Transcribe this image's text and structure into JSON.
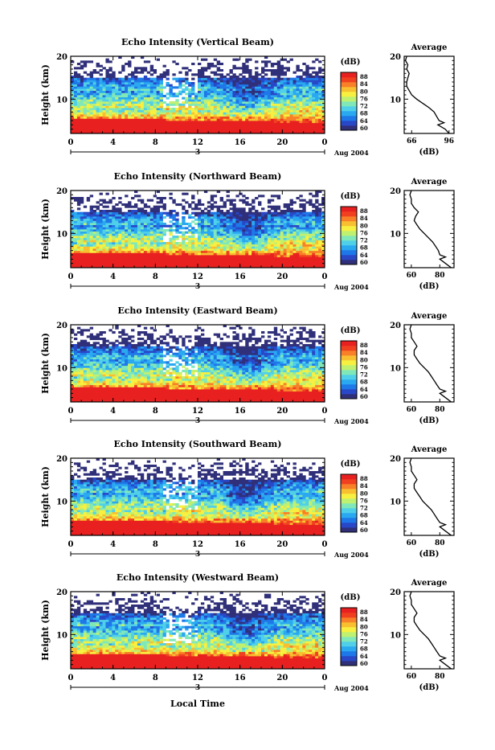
{
  "figure": {
    "bottom_xlabel": "Local Time",
    "colorbar_unit": "(dB)",
    "colorbar_ticks": [
      "88",
      "84",
      "80",
      "76",
      "72",
      "68",
      "64",
      "60"
    ],
    "colorscale": [
      "#30307a",
      "#2848c8",
      "#1e78e8",
      "#2aa8f0",
      "#50d0e8",
      "#80e8b8",
      "#c0f070",
      "#f8f040",
      "#f8c030",
      "#f88028",
      "#f04020",
      "#e82020"
    ],
    "time_ticks": [
      "0",
      "4",
      "8",
      "12",
      "16",
      "20",
      "0"
    ],
    "day_label": "3",
    "month_label": "Aug 2004",
    "ylabel": "Height (km)",
    "height_ticks": [
      "20",
      "10"
    ],
    "avg_title": "Average",
    "avg_xunit": "(dB)"
  },
  "chart_data": [
    {
      "type": "heatmap",
      "title": "Echo Intensity (Vertical Beam)",
      "xlabel": "",
      "ylabel": "Height (km)",
      "x_range": [
        0,
        24
      ],
      "y_range": [
        2,
        20
      ],
      "zlim": [
        60,
        88
      ],
      "month": "Aug 2004",
      "day": "3",
      "average": {
        "title": "Average",
        "xlabel": "(dB)",
        "xticks": [
          "66",
          "96"
        ],
        "xlim": [
          60,
          100
        ],
        "height": [
          2,
          3,
          4,
          4.5,
          5,
          6,
          7,
          8,
          9,
          10,
          11,
          12,
          13,
          14,
          15,
          16,
          17,
          18,
          19,
          20
        ],
        "value": [
          96,
          93,
          87,
          92,
          88,
          86,
          84,
          80,
          75,
          70,
          66,
          64,
          62,
          62,
          63,
          64,
          62,
          63,
          61,
          62
        ]
      }
    },
    {
      "type": "heatmap",
      "title": "Echo Intensity (Northward Beam)",
      "xlabel": "",
      "ylabel": "Height (km)",
      "x_range": [
        0,
        24
      ],
      "y_range": [
        2,
        20
      ],
      "zlim": [
        60,
        88
      ],
      "month": "Aug 2004",
      "day": "3",
      "average": {
        "title": "Average",
        "xlabel": "(dB)",
        "xticks": [
          "60",
          "80"
        ],
        "xlim": [
          55,
          90
        ],
        "height": [
          2,
          3,
          4,
          4.5,
          5,
          6,
          7,
          8,
          9,
          10,
          11,
          12,
          13,
          14,
          15,
          16,
          17,
          18,
          19,
          20
        ],
        "value": [
          88,
          84,
          80,
          84,
          80,
          79,
          77,
          75,
          72,
          69,
          66,
          64,
          62,
          63,
          65,
          62,
          60,
          60,
          59,
          60
        ]
      }
    },
    {
      "type": "heatmap",
      "title": "Echo Intensity (Eastward Beam)",
      "xlabel": "",
      "ylabel": "Height (km)",
      "x_range": [
        0,
        24
      ],
      "y_range": [
        2,
        20
      ],
      "zlim": [
        60,
        88
      ],
      "month": "Aug 2004",
      "day": "3",
      "average": {
        "title": "Average",
        "xlabel": "(dB)",
        "xticks": [
          "60",
          "80"
        ],
        "xlim": [
          55,
          90
        ],
        "height": [
          2,
          3,
          4,
          4.5,
          5,
          6,
          7,
          8,
          9,
          10,
          11,
          12,
          13,
          14,
          15,
          16,
          17,
          18,
          19,
          20
        ],
        "value": [
          88,
          84,
          80,
          84,
          80,
          78,
          76,
          74,
          72,
          69,
          66,
          64,
          62,
          62,
          64,
          62,
          60,
          60,
          59,
          60
        ]
      }
    },
    {
      "type": "heatmap",
      "title": "Echo Intensity (Southward Beam)",
      "xlabel": "",
      "ylabel": "Height (km)",
      "x_range": [
        0,
        24
      ],
      "y_range": [
        2,
        20
      ],
      "zlim": [
        60,
        88
      ],
      "month": "Aug 2004",
      "day": "3",
      "average": {
        "title": "Average",
        "xlabel": "(dB)",
        "xticks": [
          "60",
          "80"
        ],
        "xlim": [
          55,
          90
        ],
        "height": [
          2,
          3,
          4,
          4.5,
          5,
          6,
          7,
          8,
          9,
          10,
          11,
          12,
          13,
          14,
          15,
          16,
          17,
          18,
          19,
          20
        ],
        "value": [
          88,
          84,
          80,
          84,
          80,
          78,
          76,
          74,
          71,
          68,
          66,
          64,
          62,
          62,
          64,
          62,
          60,
          60,
          59,
          60
        ]
      }
    },
    {
      "type": "heatmap",
      "title": "Echo Intensity (Westward Beam)",
      "xlabel": "Local Time",
      "ylabel": "Height (km)",
      "x_range": [
        0,
        24
      ],
      "y_range": [
        2,
        20
      ],
      "zlim": [
        60,
        88
      ],
      "month": "Aug 2004",
      "day": "3",
      "average": {
        "title": "Average",
        "xlabel": "(dB)",
        "xticks": [
          "60",
          "80"
        ],
        "xlim": [
          55,
          90
        ],
        "height": [
          2,
          3,
          4,
          4.5,
          5,
          6,
          7,
          8,
          9,
          10,
          11,
          12,
          13,
          14,
          15,
          16,
          17,
          18,
          19,
          20
        ],
        "value": [
          88,
          84,
          80,
          84,
          80,
          78,
          76,
          74,
          72,
          69,
          66,
          64,
          62,
          62,
          64,
          62,
          60,
          60,
          59,
          60
        ]
      }
    }
  ]
}
